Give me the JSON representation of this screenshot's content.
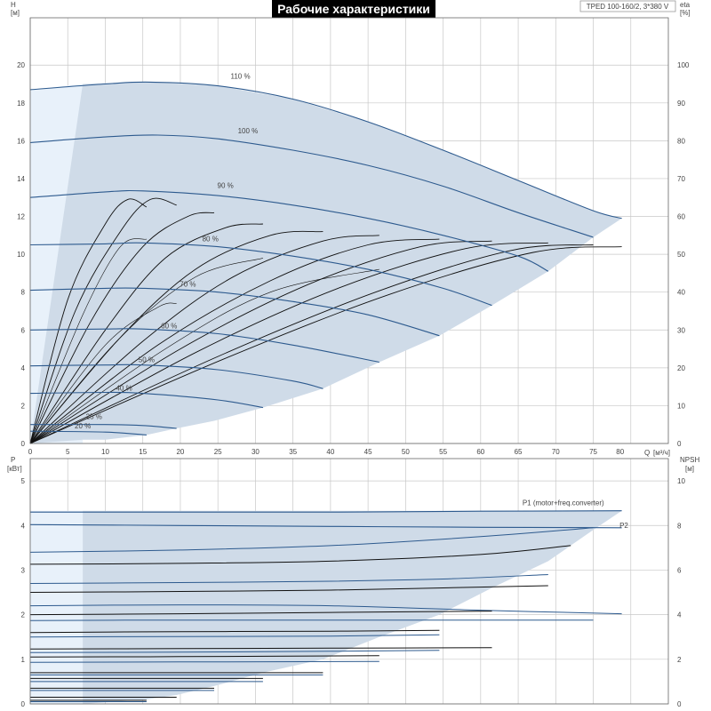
{
  "chart_data": [
    {
      "type": "line",
      "title": "Рабочие характеристики",
      "subtitle": "TPED 100-160/2, 3*380 V",
      "xlabel": "Q [м³/ч]",
      "x_unit_label": "Q",
      "x_unit": "[м³/ч]",
      "ylabel": "H",
      "ylabel_unit": "[м]",
      "y2label": "eta",
      "y2label_unit": "[%]",
      "xlim": [
        0,
        85
      ],
      "ylim": [
        0,
        22.5
      ],
      "y2lim": [
        0,
        112.5
      ],
      "x_ticks": [
        0,
        5,
        10,
        15,
        20,
        25,
        30,
        35,
        40,
        45,
        50,
        55,
        60,
        65,
        70,
        75,
        80
      ],
      "y_ticks": [
        0,
        2,
        4,
        6,
        8,
        10,
        12,
        14,
        16,
        18,
        20
      ],
      "y2_ticks": [
        0,
        10,
        20,
        30,
        40,
        50,
        60,
        70,
        80,
        90,
        100
      ],
      "grid": true,
      "series": [
        {
          "name": "110 %",
          "x": [
            0,
            10,
            16,
            25,
            35,
            45,
            55,
            65,
            75,
            78.8
          ],
          "values": [
            18.7,
            19.0,
            19.1,
            18.9,
            18.2,
            17.0,
            15.5,
            13.9,
            12.3,
            11.9
          ]
        },
        {
          "name": "100 %",
          "x": [
            0,
            10,
            17,
            25,
            35,
            45,
            55,
            65,
            75
          ],
          "values": [
            15.9,
            16.2,
            16.3,
            16.1,
            15.5,
            14.7,
            13.6,
            12.2,
            10.9
          ]
        },
        {
          "name": "90 %",
          "x": [
            0,
            10,
            15,
            25,
            35,
            45,
            55,
            65,
            69
          ],
          "values": [
            13.0,
            13.3,
            13.35,
            13.1,
            12.6,
            11.9,
            11.0,
            9.9,
            9.1
          ]
        },
        {
          "name": "80 %",
          "x": [
            0,
            10,
            15,
            25,
            35,
            45,
            55,
            61.5
          ],
          "values": [
            10.5,
            10.55,
            10.6,
            10.4,
            9.9,
            9.2,
            8.2,
            7.3
          ]
        },
        {
          "name": "70 %",
          "x": [
            0,
            10,
            15,
            25,
            35,
            45,
            54.5
          ],
          "values": [
            8.1,
            8.2,
            8.2,
            8.0,
            7.5,
            6.8,
            5.7
          ]
        },
        {
          "name": "60 %",
          "x": [
            0,
            10,
            15,
            25,
            35,
            46.5
          ],
          "values": [
            6.0,
            6.05,
            6.05,
            5.8,
            5.2,
            4.3
          ]
        },
        {
          "name": "50 %",
          "x": [
            0,
            10,
            15,
            25,
            35,
            39
          ],
          "values": [
            4.1,
            4.15,
            4.15,
            3.9,
            3.3,
            2.9
          ]
        },
        {
          "name": "40 %",
          "x": [
            0,
            10,
            15,
            25,
            31
          ],
          "values": [
            2.65,
            2.7,
            2.65,
            2.3,
            1.9
          ]
        },
        {
          "name": "25 %",
          "x": [
            0,
            10,
            15,
            19.5
          ],
          "values": [
            1.0,
            1.0,
            0.95,
            0.8
          ]
        },
        {
          "name": "20 %",
          "x": [
            0,
            10,
            15.5
          ],
          "values": [
            0.65,
            0.6,
            0.45
          ]
        }
      ],
      "eta_series": [
        {
          "x": [
            0,
            5,
            10,
            13,
            15.5
          ],
          "values": [
            0,
            38,
            58,
            64.5,
            62.5
          ]
        },
        {
          "x": [
            0,
            6,
            12,
            16,
            19.5
          ],
          "values": [
            0,
            35,
            56,
            64.5,
            63
          ]
        },
        {
          "x": [
            0,
            8,
            15,
            21,
            24.5
          ],
          "values": [
            0,
            32,
            52,
            60,
            61
          ]
        },
        {
          "x": [
            0,
            10,
            18,
            26,
            31
          ],
          "values": [
            0,
            30,
            49,
            57,
            58
          ]
        },
        {
          "x": [
            0,
            12,
            22,
            32,
            39
          ],
          "values": [
            0,
            28,
            46,
            55,
            56
          ]
        },
        {
          "x": [
            0,
            15,
            27,
            39,
            46.5
          ],
          "values": [
            0,
            27,
            44,
            53.5,
            55
          ]
        },
        {
          "x": [
            0,
            17,
            32,
            45,
            54.5
          ],
          "values": [
            0,
            26,
            43,
            52.5,
            54
          ]
        },
        {
          "x": [
            0,
            20,
            37,
            52,
            61.5
          ],
          "values": [
            0,
            25,
            42,
            52,
            53.5
          ]
        },
        {
          "x": [
            0,
            22,
            41,
            58,
            69
          ],
          "values": [
            0,
            24,
            41,
            51.5,
            53
          ]
        },
        {
          "x": [
            0,
            25,
            46,
            64,
            75
          ],
          "values": [
            0,
            23,
            40,
            51,
            52.5
          ]
        },
        {
          "x": [
            0,
            26,
            48,
            67,
            78.8
          ],
          "values": [
            0,
            22.5,
            39.5,
            50.5,
            52
          ]
        },
        {
          "x": [
            0,
            7,
            12,
            15.5
          ],
          "values": [
            0,
            34,
            52,
            54
          ]
        },
        {
          "x": [
            0,
            12,
            22,
            31
          ],
          "values": [
            0,
            28,
            44,
            49
          ]
        },
        {
          "x": [
            0,
            18,
            32,
            46.5
          ],
          "values": [
            0,
            25,
            40,
            46
          ]
        },
        {
          "x": [
            0,
            10,
            17,
            19.5
          ],
          "values": [
            0,
            26,
            36,
            37
          ]
        }
      ],
      "npsh_series": [
        {
          "x": [
            0,
            20,
            40,
            60,
            78.8
          ],
          "values": [
            62,
            62.5,
            63,
            63.5,
            64
          ]
        },
        {
          "x": [
            0,
            20,
            40,
            60,
            75
          ],
          "values": [
            59,
            60,
            61.5,
            62.5,
            63
          ]
        },
        {
          "x": [
            0,
            20,
            40,
            60,
            69
          ],
          "values": [
            60,
            61,
            62.5,
            63.5,
            64
          ]
        }
      ],
      "efficiency_area_polygon": {
        "x": [
          7,
          10,
          16,
          25,
          35,
          45,
          55,
          65,
          75,
          78.8,
          75,
          69,
          61.5,
          54.5,
          46.5,
          39,
          31,
          24.5,
          19.5,
          15.5,
          10,
          7
        ],
        "values": [
          19,
          19.05,
          19.1,
          18.9,
          18.2,
          17.0,
          15.5,
          13.9,
          12.3,
          11.9,
          10.9,
          9.1,
          7.3,
          5.7,
          4.3,
          2.9,
          1.9,
          1.2,
          0.8,
          0.45,
          0.2,
          0.2
        ]
      },
      "annotations": [
        "110 %",
        "100 %",
        "90 %",
        "80 %",
        "70 %",
        "60 %",
        "50 %",
        "40 %",
        "25 %",
        "20 %"
      ]
    },
    {
      "type": "line",
      "ylabel": "P",
      "ylabel_unit": "[кВт]",
      "y2label": "NPSH",
      "y2label_unit": "[м]",
      "xlim": [
        0,
        85
      ],
      "ylim": [
        0,
        5.5
      ],
      "y2lim": [
        0,
        11
      ],
      "y_ticks": [
        0,
        1,
        2,
        3,
        4,
        5
      ],
      "y2_ticks": [
        0,
        2,
        4,
        6,
        8,
        10
      ],
      "grid": true,
      "series": [
        {
          "name": "P1 (motor+freq.converter)",
          "x": [
            0,
            20,
            40,
            60,
            78.8
          ],
          "values": [
            4.3,
            4.3,
            4.3,
            4.32,
            4.33
          ]
        },
        {
          "name": "P2",
          "x": [
            0,
            20,
            40,
            60,
            78.8
          ],
          "values": [
            4.02,
            4.0,
            3.98,
            3.96,
            3.95
          ]
        }
      ],
      "other_series": [
        {
          "x": [
            0,
            20,
            40,
            60,
            75
          ],
          "values": [
            3.4,
            3.45,
            3.55,
            3.75,
            3.95
          ]
        },
        {
          "x": [
            0,
            20,
            40,
            60,
            72
          ],
          "values": [
            3.13,
            3.15,
            3.2,
            3.35,
            3.55
          ]
        },
        {
          "x": [
            0,
            20,
            40,
            55,
            69
          ],
          "values": [
            2.7,
            2.72,
            2.75,
            2.8,
            2.9
          ]
        },
        {
          "x": [
            0,
            20,
            40,
            55,
            69
          ],
          "values": [
            2.5,
            2.52,
            2.55,
            2.6,
            2.65
          ]
        },
        {
          "x": [
            0,
            20,
            40,
            60,
            78.8
          ],
          "values": [
            2.2,
            2.22,
            2.2,
            2.1,
            2.02
          ]
        },
        {
          "x": [
            0,
            20,
            40,
            61.5
          ],
          "values": [
            2.0,
            2.02,
            2.05,
            2.08
          ]
        },
        {
          "x": [
            0,
            20,
            40,
            60,
            75
          ],
          "values": [
            1.87,
            1.88,
            1.88,
            1.88,
            1.88
          ]
        },
        {
          "x": [
            0,
            20,
            40,
            54.5
          ],
          "values": [
            1.6,
            1.62,
            1.63,
            1.65
          ]
        },
        {
          "x": [
            0,
            20,
            40,
            54.5
          ],
          "values": [
            1.5,
            1.51,
            1.52,
            1.55
          ]
        },
        {
          "x": [
            0,
            20,
            40,
            61.5
          ],
          "values": [
            1.23,
            1.24,
            1.25,
            1.26
          ]
        },
        {
          "x": [
            0,
            20,
            40,
            54.5
          ],
          "values": [
            1.15,
            1.16,
            1.18,
            1.2
          ]
        },
        {
          "x": [
            0,
            20,
            46.5
          ],
          "values": [
            1.05,
            1.06,
            1.08
          ]
        },
        {
          "x": [
            0,
            20,
            46.5
          ],
          "values": [
            0.93,
            0.94,
            0.95
          ]
        },
        {
          "x": [
            0,
            20,
            39
          ],
          "values": [
            0.7,
            0.7,
            0.7
          ]
        },
        {
          "x": [
            0,
            20,
            39
          ],
          "values": [
            0.65,
            0.65,
            0.65
          ]
        },
        {
          "x": [
            0,
            20,
            31
          ],
          "values": [
            0.57,
            0.57,
            0.57
          ]
        },
        {
          "x": [
            0,
            20,
            31
          ],
          "values": [
            0.5,
            0.5,
            0.5
          ]
        },
        {
          "x": [
            0,
            20,
            24.5
          ],
          "values": [
            0.35,
            0.35,
            0.35
          ]
        },
        {
          "x": [
            0,
            20,
            24.5
          ],
          "values": [
            0.3,
            0.3,
            0.3
          ]
        },
        {
          "x": [
            0,
            10,
            19.5
          ],
          "values": [
            0.15,
            0.15,
            0.15
          ]
        },
        {
          "x": [
            0,
            10,
            15.5
          ],
          "values": [
            0.05,
            0.05,
            0.05
          ]
        },
        {
          "x": [
            0,
            10,
            15.5
          ],
          "values": [
            0.08,
            0.08,
            0.08
          ]
        }
      ],
      "envelope_polygon": {
        "x": [
          7,
          20,
          40,
          60,
          78.8,
          75,
          69,
          61.5,
          54.5,
          46.5,
          39,
          31,
          24.5,
          19.5,
          15.5,
          7
        ],
        "values": [
          4.33,
          4.33,
          4.33,
          4.33,
          4.33,
          3.9,
          3.2,
          2.6,
          2.0,
          1.5,
          1.0,
          0.7,
          0.4,
          0.2,
          0.1,
          0.0
        ]
      }
    }
  ],
  "colors": {
    "grid": "#c8c8c8",
    "axis": "#666666",
    "blue_line": "#2d5a8e",
    "black_line": "#111111",
    "area_fill": "#cfdbe8",
    "light_area": "#e8f1fa",
    "text": "#444444"
  }
}
